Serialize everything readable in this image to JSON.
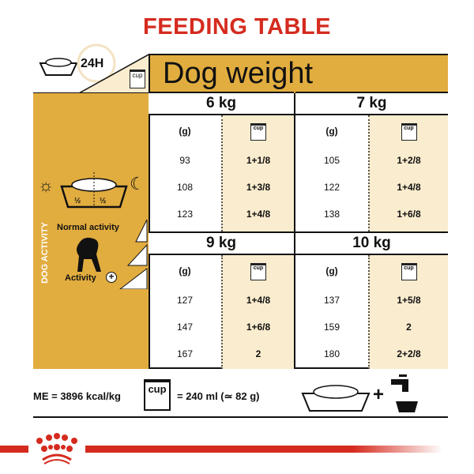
{
  "title": "FEEDING TABLE",
  "header": {
    "period": "24H",
    "cup_label": "cup",
    "dog_weight": "Dog weight"
  },
  "left_panel": {
    "half_left": "½",
    "half_right": "½",
    "dog_activity": "DOG ACTIVITY",
    "normal_activity": "Normal activity",
    "activity": "Activity"
  },
  "columns": {
    "grams": "(g)",
    "cup": "cup"
  },
  "blocks": [
    {
      "weight": "6 kg",
      "rows": [
        {
          "g": "93",
          "cup": "1+1/8"
        },
        {
          "g": "108",
          "cup": "1+3/8"
        },
        {
          "g": "123",
          "cup": "1+4/8"
        }
      ]
    },
    {
      "weight": "7 kg",
      "rows": [
        {
          "g": "105",
          "cup": "1+2/8"
        },
        {
          "g": "122",
          "cup": "1+4/8"
        },
        {
          "g": "138",
          "cup": "1+6/8"
        }
      ]
    },
    {
      "weight": "9 kg",
      "rows": [
        {
          "g": "127",
          "cup": "1+4/8"
        },
        {
          "g": "147",
          "cup": "1+6/8"
        },
        {
          "g": "167",
          "cup": "2"
        }
      ]
    },
    {
      "weight": "10 kg",
      "rows": [
        {
          "g": "137",
          "cup": "1+5/8"
        },
        {
          "g": "159",
          "cup": "2"
        },
        {
          "g": "180",
          "cup": "2+2/8"
        }
      ]
    }
  ],
  "footer": {
    "energy": "ME = 3896 kcal/kg",
    "cup_label": "cup",
    "cup_equiv": "= 240 ml (≃ 82 g)",
    "plus": "+"
  },
  "colors": {
    "gold": "#e2ad3f",
    "beige": "#faecce",
    "red": "#d52b1e"
  }
}
